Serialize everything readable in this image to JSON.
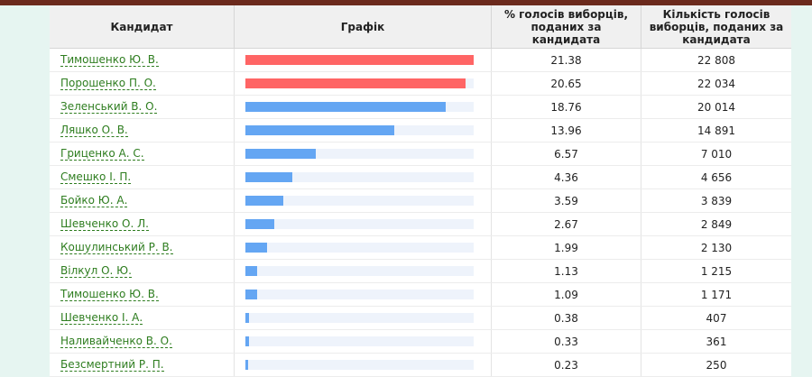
{
  "header": {
    "candidate": "Кандидат",
    "graph": "Графік",
    "percent": "% голосів виборців, поданих за кандидата",
    "votes": "Кількість голосів виборців, поданих за кандидата"
  },
  "colors": {
    "leader": "#ff6565",
    "other": "#64a6f3",
    "track": "#eef3fb"
  },
  "rows": [
    {
      "name": "Тимошенко Ю. В.",
      "percent": "21.38",
      "pct_value": 21.38,
      "votes": "22 808",
      "leader": true
    },
    {
      "name": "Порошенко П. О.",
      "percent": "20.65",
      "pct_value": 20.65,
      "votes": "22 034",
      "leader": true
    },
    {
      "name": "Зеленський В. О.",
      "percent": "18.76",
      "pct_value": 18.76,
      "votes": "20 014",
      "leader": false
    },
    {
      "name": "Ляшко О. В.",
      "percent": "13.96",
      "pct_value": 13.96,
      "votes": "14 891",
      "leader": false
    },
    {
      "name": "Гриценко А. С.",
      "percent": "6.57",
      "pct_value": 6.57,
      "votes": "7 010",
      "leader": false
    },
    {
      "name": "Смешко І. П.",
      "percent": "4.36",
      "pct_value": 4.36,
      "votes": "4 656",
      "leader": false
    },
    {
      "name": "Бойко Ю. А.",
      "percent": "3.59",
      "pct_value": 3.59,
      "votes": "3 839",
      "leader": false
    },
    {
      "name": "Шевченко О. Л.",
      "percent": "2.67",
      "pct_value": 2.67,
      "votes": "2 849",
      "leader": false
    },
    {
      "name": "Кошулинський Р. В.",
      "percent": "1.99",
      "pct_value": 1.99,
      "votes": "2 130",
      "leader": false
    },
    {
      "name": "Вілкул О. Ю.",
      "percent": "1.13",
      "pct_value": 1.13,
      "votes": "1 215",
      "leader": false
    },
    {
      "name": "Тимошенко Ю. В.",
      "percent": "1.09",
      "pct_value": 1.09,
      "votes": "1 171",
      "leader": false
    },
    {
      "name": "Шевченко І. А.",
      "percent": "0.38",
      "pct_value": 0.38,
      "votes": "407",
      "leader": false
    },
    {
      "name": "Наливайченко В. О.",
      "percent": "0.33",
      "pct_value": 0.33,
      "votes": "361",
      "leader": false
    },
    {
      "name": "Безсмертний Р. П.",
      "percent": "0.23",
      "pct_value": 0.23,
      "votes": "250",
      "leader": false
    }
  ]
}
